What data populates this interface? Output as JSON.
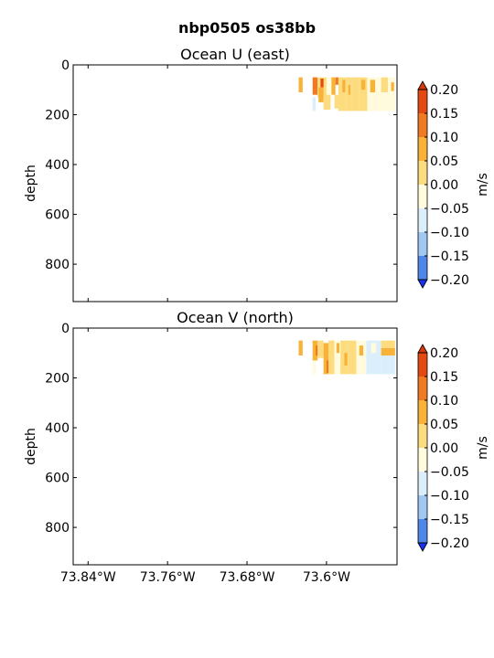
{
  "figure": {
    "title": "nbp0505 os38bb"
  },
  "chart_data": [
    {
      "type": "heatmap",
      "title": "Ocean U (east)",
      "xlabel": "",
      "ylabel": "depth",
      "ylim": [
        950,
        0
      ],
      "xlim": [
        -73.855,
        -73.529
      ],
      "yticks": [
        "0",
        "200",
        "400",
        "600",
        "800"
      ],
      "ytick_values": [
        0,
        200,
        400,
        600,
        800
      ],
      "xticks": [],
      "xtick_values": [
        -73.84,
        -73.76,
        -73.68,
        -73.6
      ],
      "colorbar": {
        "label": "m/s",
        "levels": [
          -0.2,
          -0.15,
          -0.1,
          -0.05,
          0.0,
          0.05,
          0.1,
          0.15,
          0.2
        ],
        "tick_labels": [
          "0.20",
          "0.15",
          "0.10",
          "0.05",
          "0.00",
          "−0.05",
          "−0.10",
          "−0.15",
          "−0.20"
        ],
        "extend": "both",
        "colors": [
          "#3355ee",
          "#4f86e8",
          "#9fc9f2",
          "#dbeefb",
          "#fffbdc",
          "#fddc80",
          "#f8b238",
          "#f07a22",
          "#e34a12"
        ],
        "over_color": "#d8380a",
        "under_color": "#1c30f0"
      },
      "data_extent": {
        "x": [
          -73.628,
          -73.531
        ],
        "depth": [
          50,
          185
        ]
      },
      "cells": [
        {
          "x0": -73.628,
          "x1": -73.624,
          "d0": 50,
          "d1": 110,
          "v": 0.08
        },
        {
          "x0": -73.614,
          "x1": -73.609,
          "d0": 50,
          "d1": 120,
          "v": 0.11
        },
        {
          "x0": -73.609,
          "x1": -73.6,
          "d0": 50,
          "d1": 130,
          "v": 0.04
        },
        {
          "x0": -73.606,
          "x1": -73.603,
          "d0": 55,
          "d1": 90,
          "v": 0.16
        },
        {
          "x0": -73.6,
          "x1": -73.595,
          "d0": 50,
          "d1": 150,
          "v": -0.03
        },
        {
          "x0": -73.614,
          "x1": -73.611,
          "d0": 130,
          "d1": 185,
          "v": -0.06
        },
        {
          "x0": -73.608,
          "x1": -73.603,
          "d0": 90,
          "d1": 150,
          "v": 0.07
        },
        {
          "x0": -73.603,
          "x1": -73.596,
          "d0": 120,
          "d1": 180,
          "v": 0.03
        },
        {
          "x0": -73.595,
          "x1": -73.591,
          "d0": 50,
          "d1": 120,
          "v": 0.09
        },
        {
          "x0": -73.591,
          "x1": -73.588,
          "d0": 50,
          "d1": 80,
          "v": 0.13
        },
        {
          "x0": -73.592,
          "x1": -73.586,
          "d0": 120,
          "d1": 175,
          "v": 0.04
        },
        {
          "x0": -73.588,
          "x1": -73.58,
          "d0": 50,
          "d1": 185,
          "v": 0.02
        },
        {
          "x0": -73.584,
          "x1": -73.581,
          "d0": 60,
          "d1": 110,
          "v": 0.08
        },
        {
          "x0": -73.58,
          "x1": -73.575,
          "d0": 50,
          "d1": 185,
          "v": 0.03
        },
        {
          "x0": -73.578,
          "x1": -73.576,
          "d0": 80,
          "d1": 120,
          "v": 0.1
        },
        {
          "x0": -73.575,
          "x1": -73.567,
          "d0": 50,
          "d1": 185,
          "v": 0.01
        },
        {
          "x0": -73.567,
          "x1": -73.559,
          "d0": 50,
          "d1": 185,
          "v": 0.03
        },
        {
          "x0": -73.565,
          "x1": -73.561,
          "d0": 60,
          "d1": 100,
          "v": 0.08
        },
        {
          "x0": -73.559,
          "x1": -73.545,
          "d0": 50,
          "d1": 185,
          "v": -0.04
        },
        {
          "x0": -73.556,
          "x1": -73.551,
          "d0": 60,
          "d1": 110,
          "v": 0.06
        },
        {
          "x0": -73.545,
          "x1": -73.538,
          "d0": 50,
          "d1": 110,
          "v": 0.02
        },
        {
          "x0": -73.545,
          "x1": -73.531,
          "d0": 110,
          "d1": 185,
          "v": -0.03
        },
        {
          "x0": -73.538,
          "x1": -73.531,
          "d0": 50,
          "d1": 110,
          "v": -0.04
        },
        {
          "x0": -73.535,
          "x1": -73.532,
          "d0": 70,
          "d1": 105,
          "v": 0.07
        }
      ]
    },
    {
      "type": "heatmap",
      "title": "Ocean V (north)",
      "xlabel": "",
      "ylabel": "depth",
      "ylim": [
        950,
        0
      ],
      "xlim": [
        -73.855,
        -73.529
      ],
      "yticks": [
        "0",
        "200",
        "400",
        "600",
        "800"
      ],
      "ytick_values": [
        0,
        200,
        400,
        600,
        800
      ],
      "xticks": [
        "73.84°W",
        "73.76°W",
        "73.68°W",
        "73.6°W"
      ],
      "xtick_values": [
        -73.84,
        -73.76,
        -73.68,
        -73.6
      ],
      "colorbar": {
        "label": "m/s",
        "levels": [
          -0.2,
          -0.15,
          -0.1,
          -0.05,
          0.0,
          0.05,
          0.1,
          0.15,
          0.2
        ],
        "tick_labels": [
          "0.20",
          "0.15",
          "0.10",
          "0.05",
          "0.00",
          "−0.05",
          "−0.10",
          "−0.15",
          "−0.20"
        ],
        "extend": "both",
        "colors": [
          "#3355ee",
          "#4f86e8",
          "#9fc9f2",
          "#dbeefb",
          "#fffbdc",
          "#fddc80",
          "#f8b238",
          "#f07a22",
          "#e34a12"
        ],
        "over_color": "#d8380a",
        "under_color": "#1c30f0"
      },
      "data_extent": {
        "x": [
          -73.628,
          -73.531
        ],
        "depth": [
          50,
          185
        ]
      },
      "cells": [
        {
          "x0": -73.628,
          "x1": -73.624,
          "d0": 50,
          "d1": 110,
          "v": 0.09
        },
        {
          "x0": -73.614,
          "x1": -73.609,
          "d0": 50,
          "d1": 130,
          "v": 0.07
        },
        {
          "x0": -73.611,
          "x1": -73.608,
          "d0": 70,
          "d1": 110,
          "v": 0.11
        },
        {
          "x0": -73.614,
          "x1": -73.611,
          "d0": 130,
          "d1": 185,
          "v": -0.03
        },
        {
          "x0": -73.609,
          "x1": -73.603,
          "d0": 50,
          "d1": 120,
          "v": 0.02
        },
        {
          "x0": -73.603,
          "x1": -73.598,
          "d0": 60,
          "d1": 185,
          "v": 0.06
        },
        {
          "x0": -73.6,
          "x1": -73.597,
          "d0": 130,
          "d1": 180,
          "v": 0.11
        },
        {
          "x0": -73.598,
          "x1": -73.592,
          "d0": 50,
          "d1": 185,
          "v": 0.03
        },
        {
          "x0": -73.592,
          "x1": -73.586,
          "d0": 50,
          "d1": 185,
          "v": -0.04
        },
        {
          "x0": -73.59,
          "x1": -73.587,
          "d0": 60,
          "d1": 100,
          "v": 0.08
        },
        {
          "x0": -73.586,
          "x1": -73.578,
          "d0": 50,
          "d1": 185,
          "v": 0.03
        },
        {
          "x0": -73.582,
          "x1": -73.579,
          "d0": 100,
          "d1": 150,
          "v": 0.07
        },
        {
          "x0": -73.578,
          "x1": -73.57,
          "d0": 50,
          "d1": 185,
          "v": 0.02
        },
        {
          "x0": -73.57,
          "x1": -73.56,
          "d0": 50,
          "d1": 185,
          "v": -0.03
        },
        {
          "x0": -73.567,
          "x1": -73.563,
          "d0": 70,
          "d1": 110,
          "v": 0.06
        },
        {
          "x0": -73.56,
          "x1": -73.545,
          "d0": 50,
          "d1": 185,
          "v": -0.07
        },
        {
          "x0": -73.555,
          "x1": -73.55,
          "d0": 60,
          "d1": 100,
          "v": -0.04
        },
        {
          "x0": -73.545,
          "x1": -73.531,
          "d0": 50,
          "d1": 80,
          "v": 0.03
        },
        {
          "x0": -73.545,
          "x1": -73.531,
          "d0": 80,
          "d1": 110,
          "v": 0.08
        },
        {
          "x0": -73.545,
          "x1": -73.531,
          "d0": 110,
          "d1": 185,
          "v": -0.06
        }
      ]
    }
  ]
}
